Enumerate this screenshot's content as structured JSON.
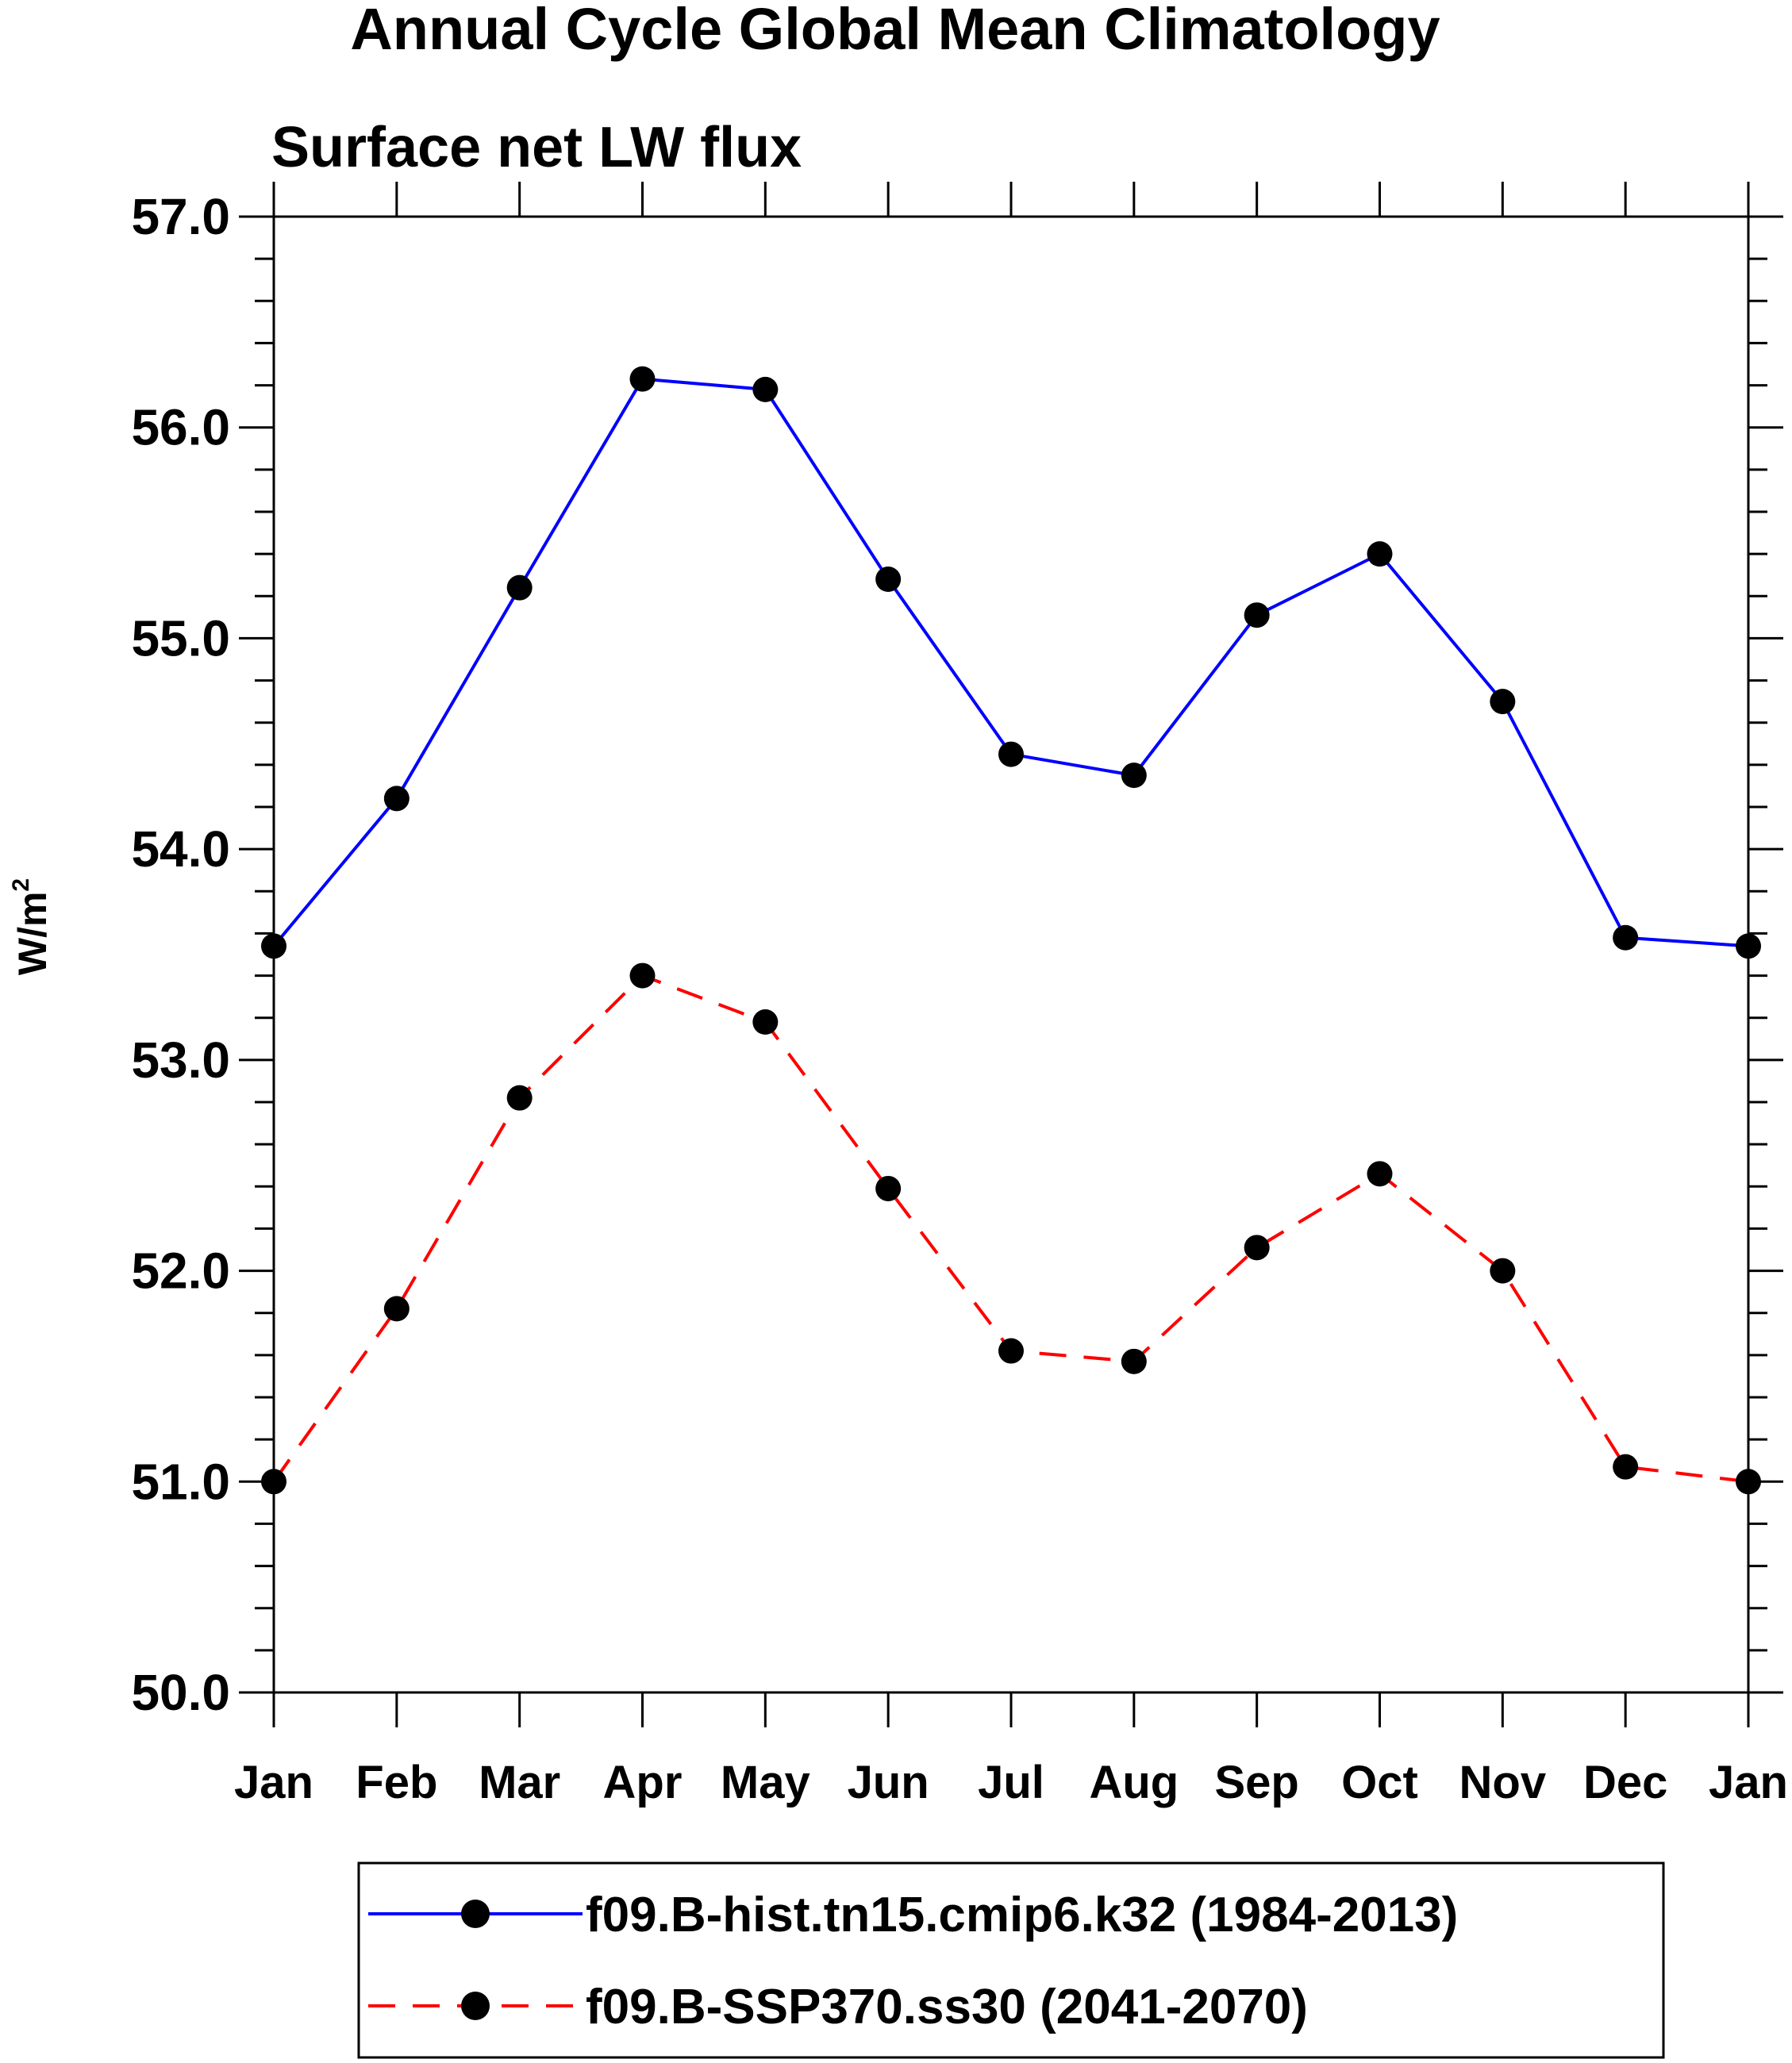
{
  "colors": {
    "hist": "#0000ff",
    "ssp": "#ff0000",
    "marker": "#000000",
    "axis": "#000000",
    "background": "#ffffff"
  },
  "chart_data": {
    "type": "line",
    "title": "Annual Cycle Global Mean Climatology",
    "subtitle": "Surface net LW flux",
    "ylabel_base": "W/m",
    "ylabel_sup": "2",
    "xlabel": "",
    "ylim": [
      50.0,
      57.0
    ],
    "ytick_step": 1.0,
    "yminor_step": 0.2,
    "yticks": [
      "50.0",
      "51.0",
      "52.0",
      "53.0",
      "54.0",
      "55.0",
      "56.0",
      "57.0"
    ],
    "categories": [
      "Jan",
      "Feb",
      "Mar",
      "Apr",
      "May",
      "Jun",
      "Jul",
      "Aug",
      "Sep",
      "Oct",
      "Nov",
      "Dec",
      "Jan"
    ],
    "series": [
      {
        "name": "f09.B-hist.tn15.cmip6.k32 (1984-2013)",
        "style": "solid",
        "color_key": "hist",
        "values": [
          53.54,
          54.24,
          55.24,
          56.23,
          56.18,
          55.28,
          54.45,
          54.35,
          55.11,
          55.4,
          54.7,
          53.58,
          53.54
        ]
      },
      {
        "name": "f09.B-SSP370.ss30 (2041-2070)",
        "style": "dashed",
        "color_key": "ssp",
        "values": [
          51.0,
          51.82,
          52.82,
          53.4,
          53.18,
          52.39,
          51.62,
          51.57,
          52.11,
          52.46,
          52.0,
          51.07,
          51.0
        ]
      }
    ],
    "legend": {
      "position": "bottom-center"
    }
  }
}
